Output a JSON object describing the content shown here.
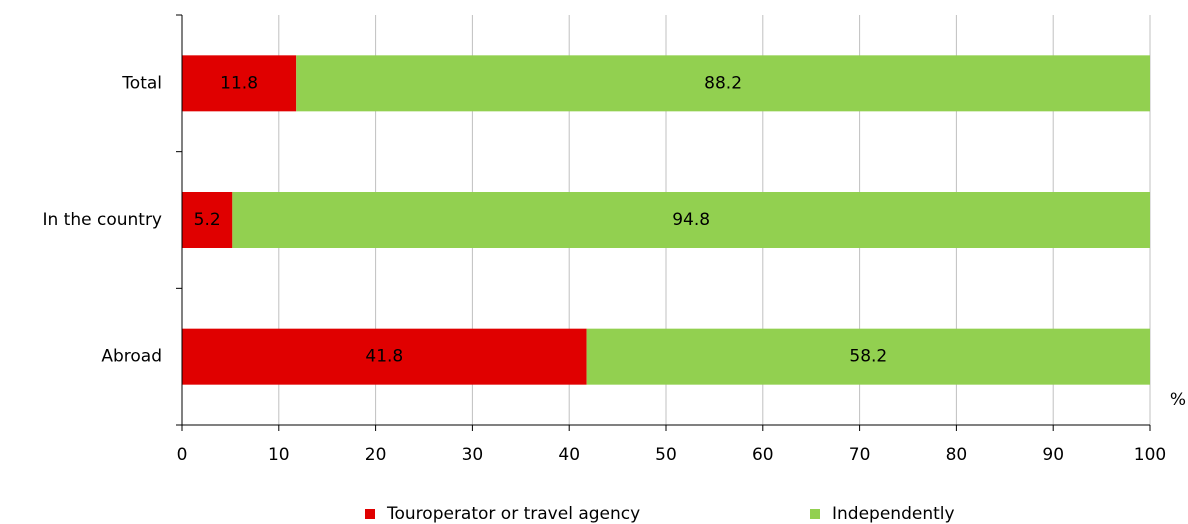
{
  "chart_data": {
    "type": "stacked_barh",
    "categories": [
      "Total",
      "In the country",
      "Abroad"
    ],
    "series": [
      {
        "name": "Touroperator or travel agency",
        "color": "#e00000",
        "values": [
          11.8,
          5.2,
          41.8
        ]
      },
      {
        "name": "Independently",
        "color": "#92d050",
        "values": [
          88.2,
          94.8,
          58.2
        ]
      }
    ],
    "x_label": "%",
    "xlim": [
      0,
      100
    ],
    "xticks": [
      0,
      10,
      20,
      30,
      40,
      50,
      60,
      70,
      80,
      90,
      100
    ],
    "grid": true,
    "legend": "bottom"
  }
}
